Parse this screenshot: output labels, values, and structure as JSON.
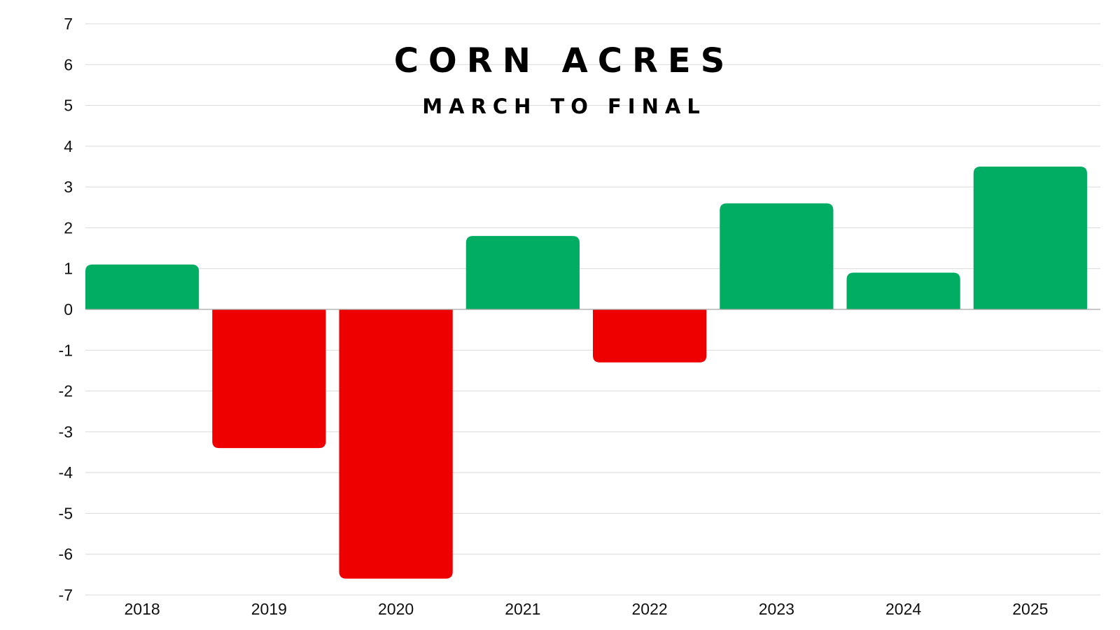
{
  "chart_data": {
    "type": "bar",
    "title": "CORN ACRES",
    "subtitle": "MARCH TO FINAL",
    "xlabel": "",
    "ylabel": "",
    "categories": [
      "2018",
      "2019",
      "2020",
      "2021",
      "2022",
      "2023",
      "2024",
      "2025"
    ],
    "values": [
      1.1,
      -3.4,
      -6.6,
      1.8,
      -1.3,
      2.6,
      0.9,
      3.5
    ],
    "ylim": [
      -7,
      7
    ],
    "yticks": [
      "-7",
      "-6",
      "-5",
      "-4",
      "-3",
      "-2",
      "-1",
      "0",
      "1",
      "2",
      "3",
      "4",
      "5",
      "6",
      "7"
    ],
    "grid": true,
    "legend": "none",
    "colors": {
      "positive": "#00ad62",
      "negative": "#ee0000",
      "grid": "#d9d9d9",
      "zero_line": "#a6a6a6"
    }
  }
}
